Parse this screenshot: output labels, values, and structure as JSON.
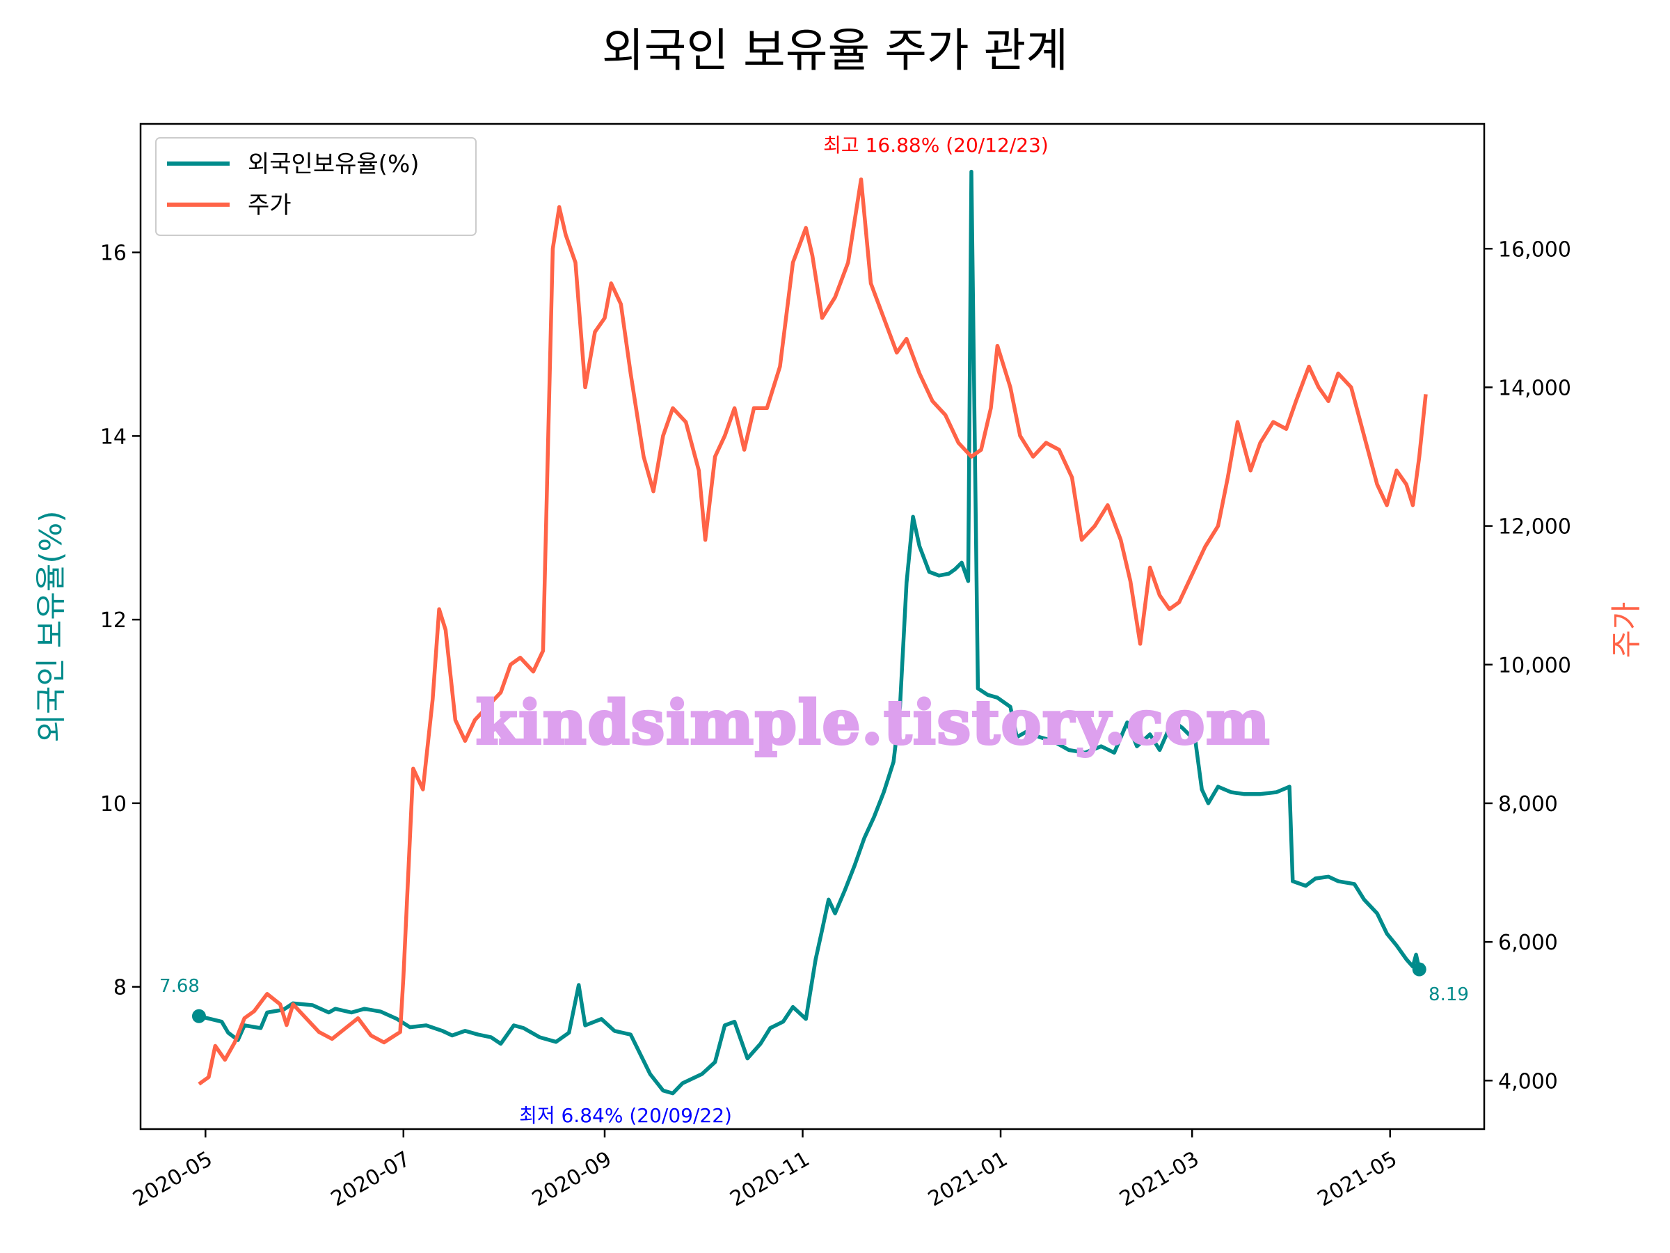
{
  "chart_data": {
    "type": "line",
    "title": "외국인 보유율 주가 관계",
    "ylabel_left": "외국인 보유율(%)",
    "ylabel_right": "주가",
    "watermark": "kindsimple.tistory.com",
    "x_tick_labels": [
      "2020-05",
      "2020-07",
      "2020-09",
      "2020-11",
      "2021-01",
      "2021-03",
      "2021-05"
    ],
    "x_range": [
      "2020-04-11",
      "2021-05-30"
    ],
    "y_left": {
      "range": [
        6.45,
        17.4
      ],
      "ticks": [
        8,
        10,
        12,
        14,
        16
      ]
    },
    "y_right": {
      "range": [
        3300,
        17800
      ],
      "ticks": [
        4000,
        6000,
        8000,
        10000,
        12000,
        14000,
        16000
      ],
      "tick_labels": [
        "4,000",
        "6,000",
        "8,000",
        "10,000",
        "12,000",
        "14,000",
        "16,000"
      ]
    },
    "legend": {
      "position": "top-left",
      "entries": [
        "외국인보유율(%)",
        "주가"
      ]
    },
    "grid": false,
    "colors": {
      "foreign": "#008b8b",
      "price": "#ff6347",
      "max_annot": "#ff0000",
      "min_annot": "#0000ff",
      "watermark": "#dda0ee"
    },
    "annotations": {
      "max_label": "최고 16.88% (20/12/23)",
      "min_label": "최저 6.84% (20/09/22)",
      "start_value_label": "7.68",
      "end_value_label": "8.19",
      "start_point": {
        "x": "2020-04-29",
        "y": 7.68
      },
      "end_point": {
        "x": "2021-05-10",
        "y": 8.19
      }
    },
    "series": [
      {
        "name": "외국인보유율(%)",
        "axis": "left",
        "points": [
          [
            "2020-04-29",
            7.68
          ],
          [
            "2020-05-06",
            7.62
          ],
          [
            "2020-05-08",
            7.5
          ],
          [
            "2020-05-11",
            7.42
          ],
          [
            "2020-05-13",
            7.58
          ],
          [
            "2020-05-18",
            7.55
          ],
          [
            "2020-05-20",
            7.72
          ],
          [
            "2020-05-25",
            7.75
          ],
          [
            "2020-05-28",
            7.82
          ],
          [
            "2020-06-03",
            7.8
          ],
          [
            "2020-06-08",
            7.72
          ],
          [
            "2020-06-10",
            7.76
          ],
          [
            "2020-06-15",
            7.72
          ],
          [
            "2020-06-19",
            7.76
          ],
          [
            "2020-06-24",
            7.73
          ],
          [
            "2020-06-29",
            7.65
          ],
          [
            "2020-07-03",
            7.56
          ],
          [
            "2020-07-08",
            7.58
          ],
          [
            "2020-07-13",
            7.52
          ],
          [
            "2020-07-16",
            7.47
          ],
          [
            "2020-07-20",
            7.52
          ],
          [
            "2020-07-24",
            7.48
          ],
          [
            "2020-07-28",
            7.45
          ],
          [
            "2020-07-31",
            7.38
          ],
          [
            "2020-08-04",
            7.58
          ],
          [
            "2020-08-07",
            7.55
          ],
          [
            "2020-08-12",
            7.45
          ],
          [
            "2020-08-17",
            7.4
          ],
          [
            "2020-08-21",
            7.5
          ],
          [
            "2020-08-24",
            8.02
          ],
          [
            "2020-08-26",
            7.58
          ],
          [
            "2020-08-31",
            7.65
          ],
          [
            "2020-09-04",
            7.52
          ],
          [
            "2020-09-09",
            7.48
          ],
          [
            "2020-09-15",
            7.05
          ],
          [
            "2020-09-19",
            6.87
          ],
          [
            "2020-09-22",
            6.84
          ],
          [
            "2020-09-25",
            6.95
          ],
          [
            "2020-09-28",
            7.0
          ],
          [
            "2020-10-01",
            7.05
          ],
          [
            "2020-10-05",
            7.18
          ],
          [
            "2020-10-08",
            7.58
          ],
          [
            "2020-10-11",
            7.62
          ],
          [
            "2020-10-13",
            7.42
          ],
          [
            "2020-10-15",
            7.22
          ],
          [
            "2020-10-19",
            7.38
          ],
          [
            "2020-10-22",
            7.55
          ],
          [
            "2020-10-26",
            7.62
          ],
          [
            "2020-10-29",
            7.78
          ],
          [
            "2020-11-02",
            7.65
          ],
          [
            "2020-11-05",
            8.3
          ],
          [
            "2020-11-07",
            8.62
          ],
          [
            "2020-11-09",
            8.95
          ],
          [
            "2020-11-11",
            8.8
          ],
          [
            "2020-11-14",
            9.05
          ],
          [
            "2020-11-17",
            9.32
          ],
          [
            "2020-11-20",
            9.62
          ],
          [
            "2020-11-23",
            9.85
          ],
          [
            "2020-11-26",
            10.12
          ],
          [
            "2020-11-29",
            10.45
          ],
          [
            "2020-12-01",
            11.05
          ],
          [
            "2020-12-03",
            12.4
          ],
          [
            "2020-12-05",
            13.12
          ],
          [
            "2020-12-07",
            12.8
          ],
          [
            "2020-12-10",
            12.52
          ],
          [
            "2020-12-13",
            12.48
          ],
          [
            "2020-12-16",
            12.5
          ],
          [
            "2020-12-18",
            12.55
          ],
          [
            "2020-12-20",
            12.62
          ],
          [
            "2020-12-22",
            12.42
          ],
          [
            "2020-12-23",
            16.88
          ],
          [
            "2020-12-25",
            11.25
          ],
          [
            "2020-12-28",
            11.18
          ],
          [
            "2020-12-31",
            11.15
          ],
          [
            "2021-01-04",
            11.05
          ],
          [
            "2021-01-06",
            10.72
          ],
          [
            "2021-01-09",
            10.78
          ],
          [
            "2021-01-13",
            10.72
          ],
          [
            "2021-01-17",
            10.68
          ],
          [
            "2021-01-22",
            10.58
          ],
          [
            "2021-01-27",
            10.55
          ],
          [
            "2021-02-01",
            10.62
          ],
          [
            "2021-02-05",
            10.55
          ],
          [
            "2021-02-09",
            10.88
          ],
          [
            "2021-02-12",
            10.62
          ],
          [
            "2021-02-16",
            10.75
          ],
          [
            "2021-02-19",
            10.58
          ],
          [
            "2021-02-23",
            10.9
          ],
          [
            "2021-02-26",
            10.82
          ],
          [
            "2021-03-02",
            10.68
          ],
          [
            "2021-03-04",
            10.15
          ],
          [
            "2021-03-06",
            10.0
          ],
          [
            "2021-03-09",
            10.18
          ],
          [
            "2021-03-13",
            10.12
          ],
          [
            "2021-03-17",
            10.1
          ],
          [
            "2021-03-22",
            10.1
          ],
          [
            "2021-03-27",
            10.12
          ],
          [
            "2021-03-31",
            10.18
          ],
          [
            "2021-04-01",
            9.15
          ],
          [
            "2021-04-05",
            9.1
          ],
          [
            "2021-04-08",
            9.18
          ],
          [
            "2021-04-12",
            9.2
          ],
          [
            "2021-04-15",
            9.15
          ],
          [
            "2021-04-20",
            9.12
          ],
          [
            "2021-04-23",
            8.95
          ],
          [
            "2021-04-27",
            8.8
          ],
          [
            "2021-04-30",
            8.58
          ],
          [
            "2021-05-03",
            8.45
          ],
          [
            "2021-05-06",
            8.3
          ],
          [
            "2021-05-08",
            8.22
          ],
          [
            "2021-05-09",
            8.35
          ],
          [
            "2021-05-10",
            8.19
          ]
        ]
      },
      {
        "name": "주가",
        "axis": "right",
        "points": [
          [
            "2020-04-29",
            3950
          ],
          [
            "2020-05-02",
            4050
          ],
          [
            "2020-05-04",
            4500
          ],
          [
            "2020-05-07",
            4300
          ],
          [
            "2020-05-10",
            4550
          ],
          [
            "2020-05-13",
            4900
          ],
          [
            "2020-05-16",
            5000
          ],
          [
            "2020-05-20",
            5250
          ],
          [
            "2020-05-24",
            5100
          ],
          [
            "2020-05-26",
            4800
          ],
          [
            "2020-05-28",
            5100
          ],
          [
            "2020-06-01",
            4900
          ],
          [
            "2020-06-05",
            4700
          ],
          [
            "2020-06-09",
            4600
          ],
          [
            "2020-06-13",
            4750
          ],
          [
            "2020-06-17",
            4900
          ],
          [
            "2020-06-21",
            4650
          ],
          [
            "2020-06-25",
            4550
          ],
          [
            "2020-06-30",
            4700
          ],
          [
            "2020-07-01",
            5500
          ],
          [
            "2020-07-04",
            8500
          ],
          [
            "2020-07-07",
            8200
          ],
          [
            "2020-07-10",
            9500
          ],
          [
            "2020-07-12",
            10800
          ],
          [
            "2020-07-14",
            10500
          ],
          [
            "2020-07-17",
            9200
          ],
          [
            "2020-07-20",
            8900
          ],
          [
            "2020-07-23",
            9200
          ],
          [
            "2020-07-27",
            9400
          ],
          [
            "2020-07-31",
            9600
          ],
          [
            "2020-08-03",
            10000
          ],
          [
            "2020-08-06",
            10100
          ],
          [
            "2020-08-10",
            9900
          ],
          [
            "2020-08-13",
            10200
          ],
          [
            "2020-08-16",
            16000
          ],
          [
            "2020-08-18",
            16600
          ],
          [
            "2020-08-20",
            16200
          ],
          [
            "2020-08-23",
            15800
          ],
          [
            "2020-08-26",
            14000
          ],
          [
            "2020-08-29",
            14800
          ],
          [
            "2020-09-01",
            15000
          ],
          [
            "2020-09-03",
            15500
          ],
          [
            "2020-09-06",
            15200
          ],
          [
            "2020-09-09",
            14200
          ],
          [
            "2020-09-13",
            13000
          ],
          [
            "2020-09-16",
            12500
          ],
          [
            "2020-09-19",
            13300
          ],
          [
            "2020-09-22",
            13700
          ],
          [
            "2020-09-26",
            13500
          ],
          [
            "2020-09-30",
            12800
          ],
          [
            "2020-10-02",
            11800
          ],
          [
            "2020-10-05",
            13000
          ],
          [
            "2020-10-08",
            13300
          ],
          [
            "2020-10-11",
            13700
          ],
          [
            "2020-10-14",
            13100
          ],
          [
            "2020-10-17",
            13700
          ],
          [
            "2020-10-21",
            13700
          ],
          [
            "2020-10-25",
            14300
          ],
          [
            "2020-10-29",
            15800
          ],
          [
            "2020-11-02",
            16300
          ],
          [
            "2020-11-04",
            15900
          ],
          [
            "2020-11-07",
            15000
          ],
          [
            "2020-11-11",
            15300
          ],
          [
            "2020-11-15",
            15800
          ],
          [
            "2020-11-19",
            17000
          ],
          [
            "2020-11-22",
            15500
          ],
          [
            "2020-11-26",
            15000
          ],
          [
            "2020-11-30",
            14500
          ],
          [
            "2020-12-03",
            14700
          ],
          [
            "2020-12-07",
            14200
          ],
          [
            "2020-12-11",
            13800
          ],
          [
            "2020-12-15",
            13600
          ],
          [
            "2020-12-19",
            13200
          ],
          [
            "2020-12-23",
            13000
          ],
          [
            "2020-12-26",
            13100
          ],
          [
            "2020-12-29",
            13700
          ],
          [
            "2020-12-31",
            14600
          ],
          [
            "2021-01-04",
            14000
          ],
          [
            "2021-01-07",
            13300
          ],
          [
            "2021-01-11",
            13000
          ],
          [
            "2021-01-15",
            13200
          ],
          [
            "2021-01-19",
            13100
          ],
          [
            "2021-01-23",
            12700
          ],
          [
            "2021-01-26",
            11800
          ],
          [
            "2021-01-30",
            12000
          ],
          [
            "2021-02-03",
            12300
          ],
          [
            "2021-02-07",
            11800
          ],
          [
            "2021-02-10",
            11200
          ],
          [
            "2021-02-13",
            10300
          ],
          [
            "2021-02-16",
            11400
          ],
          [
            "2021-02-19",
            11000
          ],
          [
            "2021-02-22",
            10800
          ],
          [
            "2021-02-25",
            10900
          ],
          [
            "2021-03-01",
            11300
          ],
          [
            "2021-03-05",
            11700
          ],
          [
            "2021-03-09",
            12000
          ],
          [
            "2021-03-12",
            12700
          ],
          [
            "2021-03-15",
            13500
          ],
          [
            "2021-03-19",
            12800
          ],
          [
            "2021-03-22",
            13200
          ],
          [
            "2021-03-26",
            13500
          ],
          [
            "2021-03-30",
            13400
          ],
          [
            "2021-04-02",
            13800
          ],
          [
            "2021-04-06",
            14300
          ],
          [
            "2021-04-09",
            14000
          ],
          [
            "2021-04-12",
            13800
          ],
          [
            "2021-04-15",
            14200
          ],
          [
            "2021-04-19",
            14000
          ],
          [
            "2021-04-23",
            13300
          ],
          [
            "2021-04-27",
            12600
          ],
          [
            "2021-04-30",
            12300
          ],
          [
            "2021-05-03",
            12800
          ],
          [
            "2021-05-06",
            12600
          ],
          [
            "2021-05-08",
            12300
          ],
          [
            "2021-05-10",
            13000
          ],
          [
            "2021-05-12",
            13900
          ]
        ]
      }
    ]
  }
}
